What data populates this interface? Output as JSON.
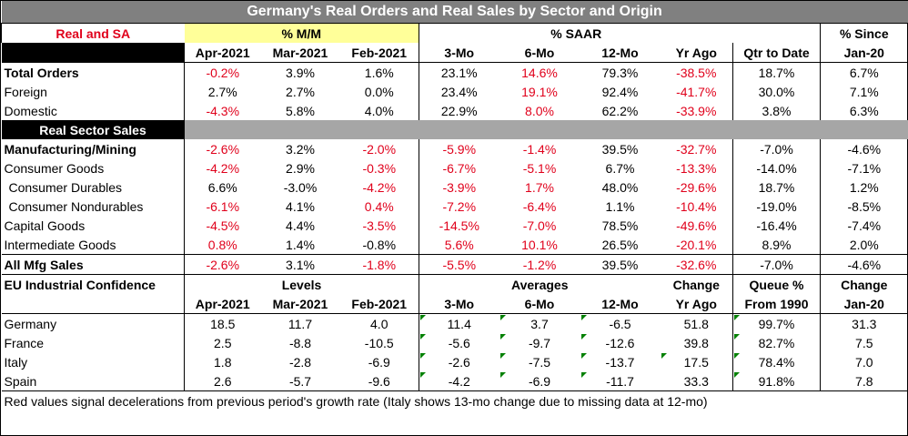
{
  "title": "Germany's Real Orders and Real Sales by Sector and Origin",
  "header": {
    "corner": "Real and SA",
    "mm_group": "% M/M",
    "saar_group": "% SAAR",
    "since_group": "% Since",
    "cols": [
      "Apr-2021",
      "Mar-2021",
      "Feb-2021",
      "3-Mo",
      "6-Mo",
      "12-Mo",
      "Yr Ago",
      "Qtr to Date",
      "Jan-20"
    ]
  },
  "orders": [
    {
      "label": "Total Orders",
      "bold": true,
      "cells": [
        {
          "v": "-0.2%",
          "red": true
        },
        {
          "v": "3.9%"
        },
        {
          "v": "1.6%"
        },
        {
          "v": "23.1%"
        },
        {
          "v": "14.6%",
          "red": true
        },
        {
          "v": "79.3%"
        },
        {
          "v": "-38.5%",
          "red": true
        },
        {
          "v": "18.7%"
        },
        {
          "v": "6.7%"
        }
      ]
    },
    {
      "label": "Foreign",
      "cells": [
        {
          "v": "2.7%"
        },
        {
          "v": "2.7%"
        },
        {
          "v": "0.0%"
        },
        {
          "v": "23.4%"
        },
        {
          "v": "19.1%",
          "red": true
        },
        {
          "v": "92.4%"
        },
        {
          "v": "-41.7%",
          "red": true
        },
        {
          "v": "30.0%"
        },
        {
          "v": "7.1%"
        }
      ]
    },
    {
      "label": "Domestic",
      "cells": [
        {
          "v": "-4.3%",
          "red": true
        },
        {
          "v": "5.8%"
        },
        {
          "v": "4.0%"
        },
        {
          "v": "22.9%"
        },
        {
          "v": "8.0%",
          "red": true
        },
        {
          "v": "62.2%"
        },
        {
          "v": "-33.9%",
          "red": true
        },
        {
          "v": "3.8%"
        },
        {
          "v": "6.3%"
        }
      ]
    }
  ],
  "sales_header": "Real Sector Sales",
  "sales": [
    {
      "label": "Manufacturing/Mining",
      "bold": true,
      "cells": [
        {
          "v": "-2.6%",
          "red": true
        },
        {
          "v": "3.2%"
        },
        {
          "v": "-2.0%",
          "red": true
        },
        {
          "v": "-5.9%",
          "red": true
        },
        {
          "v": "-1.4%",
          "red": true
        },
        {
          "v": "39.5%"
        },
        {
          "v": "-32.7%",
          "red": true
        },
        {
          "v": "-7.0%"
        },
        {
          "v": "-4.6%"
        }
      ]
    },
    {
      "label": "Consumer Goods",
      "cells": [
        {
          "v": "-4.2%",
          "red": true
        },
        {
          "v": "2.9%"
        },
        {
          "v": "-0.3%",
          "red": true
        },
        {
          "v": "-6.7%",
          "red": true
        },
        {
          "v": "-5.1%",
          "red": true
        },
        {
          "v": "6.7%"
        },
        {
          "v": "-13.3%",
          "red": true
        },
        {
          "v": "-14.0%"
        },
        {
          "v": "-7.1%"
        }
      ]
    },
    {
      "label": "Consumer Durables",
      "indent": true,
      "cells": [
        {
          "v": "6.6%"
        },
        {
          "v": "-3.0%"
        },
        {
          "v": "-4.2%",
          "red": true
        },
        {
          "v": "-3.9%",
          "red": true
        },
        {
          "v": "1.7%",
          "red": true
        },
        {
          "v": "48.0%"
        },
        {
          "v": "-29.6%",
          "red": true
        },
        {
          "v": "18.7%"
        },
        {
          "v": "1.2%"
        }
      ]
    },
    {
      "label": "Consumer Nondurables",
      "indent": true,
      "cells": [
        {
          "v": "-6.1%",
          "red": true
        },
        {
          "v": "4.1%"
        },
        {
          "v": "0.4%",
          "red": true
        },
        {
          "v": "-7.2%",
          "red": true
        },
        {
          "v": "-6.4%",
          "red": true
        },
        {
          "v": "1.1%"
        },
        {
          "v": "-10.4%",
          "red": true
        },
        {
          "v": "-19.0%"
        },
        {
          "v": "-8.5%"
        }
      ]
    },
    {
      "label": "Capital Goods",
      "cells": [
        {
          "v": "-4.5%",
          "red": true
        },
        {
          "v": "4.4%"
        },
        {
          "v": "-3.5%",
          "red": true
        },
        {
          "v": "-14.5%",
          "red": true
        },
        {
          "v": "-7.0%",
          "red": true
        },
        {
          "v": "78.5%"
        },
        {
          "v": "-49.6%",
          "red": true
        },
        {
          "v": "-16.4%"
        },
        {
          "v": "-7.4%"
        }
      ]
    },
    {
      "label": "Intermediate Goods",
      "cells": [
        {
          "v": "0.8%",
          "red": true
        },
        {
          "v": "1.4%"
        },
        {
          "v": "-0.8%"
        },
        {
          "v": "5.6%",
          "red": true
        },
        {
          "v": "10.1%",
          "red": true
        },
        {
          "v": "26.5%"
        },
        {
          "v": "-20.1%",
          "red": true
        },
        {
          "v": "8.9%"
        },
        {
          "v": "2.0%"
        }
      ]
    },
    {
      "label": "All Mfg Sales",
      "bold": true,
      "cells": [
        {
          "v": "-2.6%",
          "red": true
        },
        {
          "v": "3.1%"
        },
        {
          "v": "-1.8%",
          "red": true
        },
        {
          "v": "-5.5%",
          "red": true
        },
        {
          "v": "-1.2%",
          "red": true
        },
        {
          "v": "39.5%"
        },
        {
          "v": "-32.6%",
          "red": true
        },
        {
          "v": "-7.0%"
        },
        {
          "v": "-4.6%"
        }
      ]
    }
  ],
  "eu": {
    "label": "EU Industrial Confidence",
    "levels": "Levels",
    "averages": "Averages",
    "change": "Change",
    "queue": "Queue %",
    "change2": "Change",
    "sub": [
      "Apr-2021",
      "Mar-2021",
      "Feb-2021",
      "3-Mo",
      "6-Mo",
      "12-Mo",
      "Yr Ago",
      "From 1990",
      "Jan-20"
    ],
    "rows": [
      {
        "label": "Germany",
        "cells": [
          "18.5",
          "11.7",
          "4.0",
          "11.4",
          "3.7",
          "-6.5",
          "51.8",
          "99.7%",
          "31.3"
        ],
        "tri": [
          3,
          4,
          5,
          7
        ]
      },
      {
        "label": "France",
        "cells": [
          "2.5",
          "-8.8",
          "-10.5",
          "-5.6",
          "-9.7",
          "-12.6",
          "39.8",
          "82.7%",
          "7.5"
        ],
        "tri": [
          3,
          4,
          5,
          7
        ]
      },
      {
        "label": "Italy",
        "cells": [
          "1.8",
          "-2.8",
          "-6.9",
          "-2.6",
          "-7.5",
          "-13.7",
          "17.5",
          "78.4%",
          "7.0"
        ],
        "tri": [
          3,
          4,
          5,
          6,
          7
        ]
      },
      {
        "label": "Spain",
        "cells": [
          "2.6",
          "-5.7",
          "-9.6",
          "-4.2",
          "-6.9",
          "-11.7",
          "33.3",
          "91.8%",
          "7.8"
        ],
        "tri": [
          3,
          4,
          5,
          7
        ]
      }
    ]
  },
  "note": "Red values signal decelerations from previous period's growth rate (Italy shows 13-mo change due to missing data at 12-mo)",
  "colors": {
    "red": "#e0001b",
    "yellow": "#ffff99",
    "gray": "#a6a6a6",
    "title_bg": "#808080",
    "comment_marker": "#008000"
  }
}
